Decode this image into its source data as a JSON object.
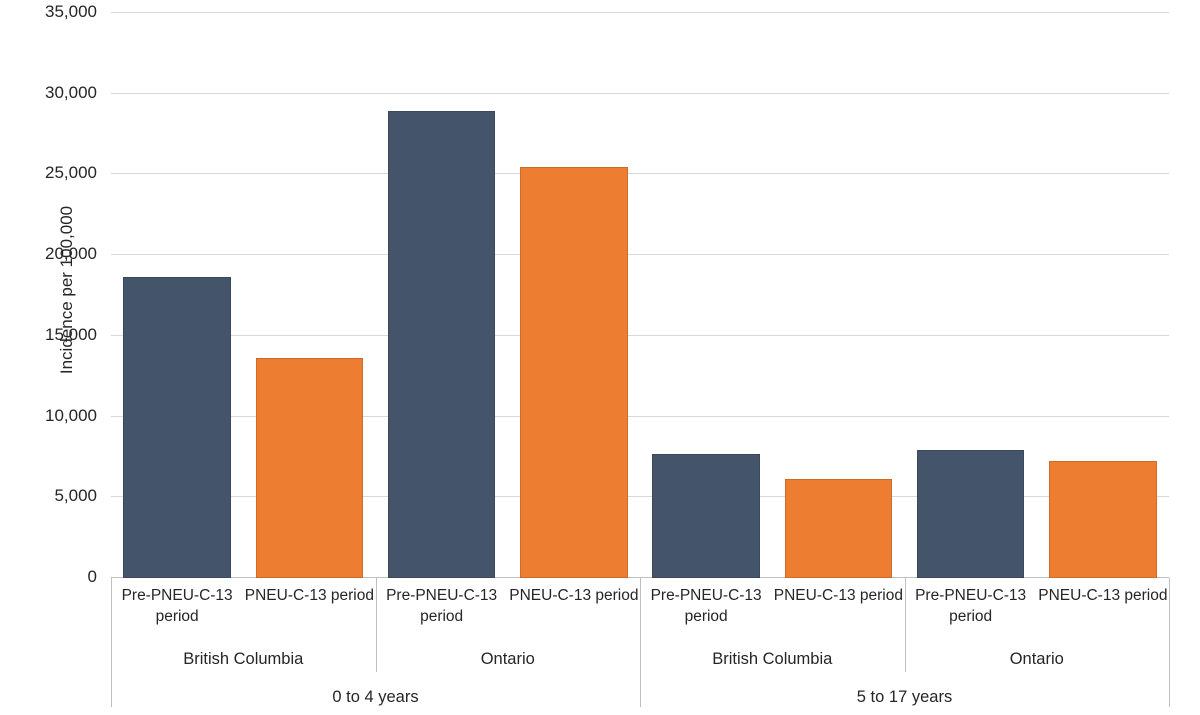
{
  "chart_data": {
    "type": "bar",
    "title": "",
    "ylabel": "Incidence per 100,000",
    "xlabel": "",
    "ylim": [
      0,
      35000
    ],
    "ytick_step": 5000,
    "yticklabels": [
      "0",
      "5,000",
      "10,000",
      "15,000",
      "20,000",
      "25,000",
      "30,000",
      "35,000"
    ],
    "grid": "horizontal",
    "legend": "none",
    "series_colors": {
      "pre_period": "#44546A",
      "pneu_period": "#ED7D31"
    },
    "period_labels": {
      "pre": "Pre-PNEU-C-13 period",
      "post": "PNEU-C-13 period"
    },
    "groups": [
      {
        "age": "0 to 4 years",
        "provinces": [
          {
            "name": "British Columbia",
            "bars": [
              {
                "period": "Pre-PNEU-C-13 period",
                "series": "pre",
                "value": 18650
              },
              {
                "period": "PNEU-C-13 period",
                "series": "post",
                "value": 13600
              }
            ]
          },
          {
            "name": "Ontario",
            "bars": [
              {
                "period": "Pre-PNEU-C-13 period",
                "series": "pre",
                "value": 28900
              },
              {
                "period": "PNEU-C-13 period",
                "series": "post",
                "value": 25450
              }
            ]
          }
        ]
      },
      {
        "age": "5 to 17 years",
        "provinces": [
          {
            "name": "British Columbia",
            "bars": [
              {
                "period": "Pre-PNEU-C-13 period",
                "series": "pre",
                "value": 7700
              },
              {
                "period": "PNEU-C-13 period",
                "series": "post",
                "value": 6150
              }
            ]
          },
          {
            "name": "Ontario",
            "bars": [
              {
                "period": "Pre-PNEU-C-13 period",
                "series": "pre",
                "value": 7950
              },
              {
                "period": "PNEU-C-13 period",
                "series": "post",
                "value": 7250
              }
            ]
          }
        ]
      }
    ]
  }
}
